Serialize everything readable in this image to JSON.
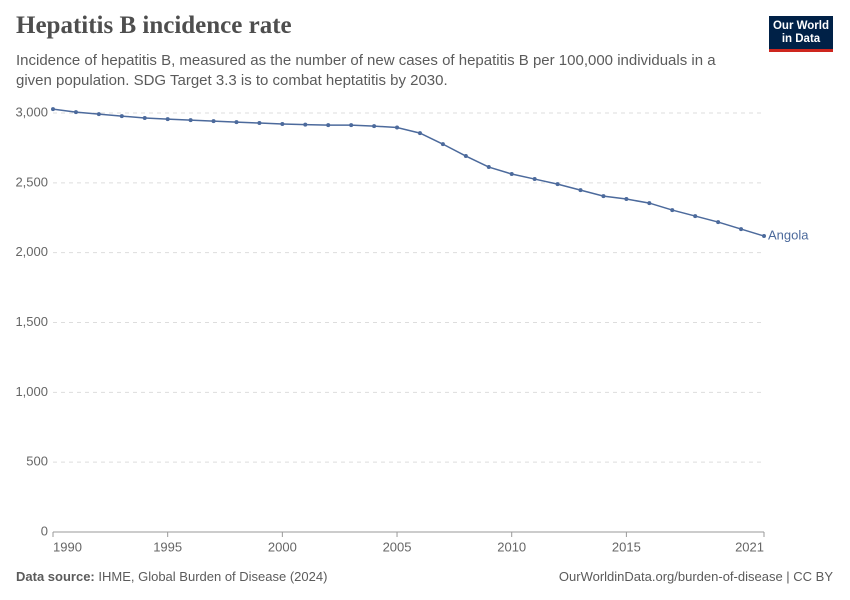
{
  "logo": [
    "Our World",
    "in Data"
  ],
  "chart_data": {
    "type": "line",
    "title": "Hepatitis B incidence rate",
    "subtitle": "Incidence of hepatitis B, measured as the number of new cases of hepatitis B per 100,000 individuals in a given population. SDG Target 3.3 is to combat heptatitis by 2030.",
    "x": [
      1990,
      1991,
      1992,
      1993,
      1994,
      1995,
      1996,
      1997,
      1998,
      1999,
      2000,
      2001,
      2002,
      2003,
      2004,
      2005,
      2006,
      2007,
      2008,
      2009,
      2010,
      2011,
      2012,
      2013,
      2014,
      2015,
      2016,
      2017,
      2018,
      2019,
      2020,
      2021
    ],
    "series": [
      {
        "name": "Angola",
        "color": "#4c6a9c",
        "values": [
          3028,
          3006,
          2992,
          2978,
          2964,
          2956,
          2949,
          2942,
          2935,
          2928,
          2921,
          2917,
          2913,
          2913,
          2906,
          2896,
          2856,
          2777,
          2692,
          2613,
          2563,
          2527,
          2491,
          2448,
          2405,
          2384,
          2355,
          2305,
          2262,
          2219,
          2169,
          2119
        ]
      }
    ],
    "xlim": [
      1990,
      2021
    ],
    "ylim": [
      0,
      3000
    ],
    "xticks": [
      1990,
      1995,
      2000,
      2005,
      2010,
      2015,
      2021
    ],
    "yticks": [
      0,
      500,
      {
        "value": 1000,
        "label": "1,000"
      },
      {
        "value": 1500,
        "label": "1,500"
      },
      {
        "value": 2000,
        "label": "2,000"
      },
      {
        "value": 2500,
        "label": "2,500"
      },
      {
        "value": 3000,
        "label": "3,000"
      }
    ],
    "grid": true,
    "source_label": "Data source:",
    "source": "IHME, Global Burden of Disease (2024)",
    "url": "OurWorldinData.org/burden-of-disease | CC BY"
  }
}
